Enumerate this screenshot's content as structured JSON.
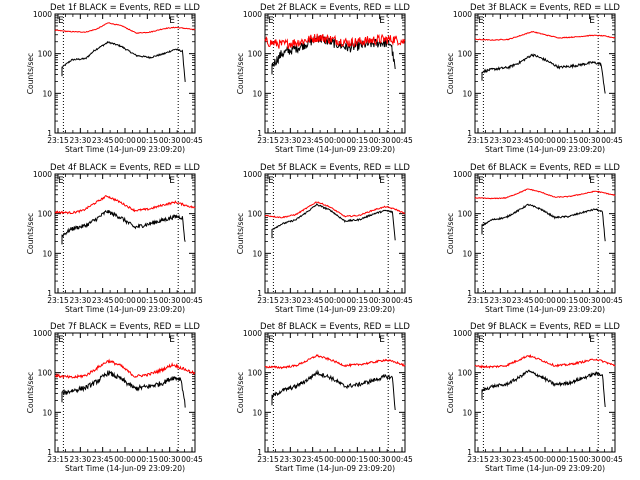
{
  "chart_data": [
    {
      "type": "line",
      "title": "Det 1f BLACK = Events, RED = LLD",
      "series": [
        {
          "name": "Events",
          "color": "#000000",
          "noise": 0.02,
          "drop": true,
          "values": [
            [
              0.0,
              0
            ],
            [
              0.05,
              45
            ],
            [
              0.12,
              70
            ],
            [
              0.22,
              75
            ],
            [
              0.28,
              120
            ],
            [
              0.38,
              195
            ],
            [
              0.47,
              155
            ],
            [
              0.58,
              90
            ],
            [
              0.68,
              80
            ],
            [
              0.78,
              100
            ],
            [
              0.86,
              130
            ],
            [
              0.91,
              115
            ],
            [
              0.93,
              20
            ]
          ]
        },
        {
          "name": "LLD",
          "color": "#ff0000",
          "noise": 0.01,
          "drop": false,
          "values": [
            [
              0.0,
              390
            ],
            [
              0.1,
              360
            ],
            [
              0.22,
              350
            ],
            [
              0.3,
              420
            ],
            [
              0.38,
              600
            ],
            [
              0.48,
              500
            ],
            [
              0.58,
              330
            ],
            [
              0.68,
              350
            ],
            [
              0.78,
              430
            ],
            [
              0.86,
              460
            ],
            [
              0.94,
              430
            ],
            [
              1.0,
              400
            ]
          ]
        }
      ]
    },
    {
      "type": "line",
      "title": "Det 2f BLACK = Events, RED = LLD",
      "series": [
        {
          "name": "Events",
          "color": "#000000",
          "noise": 0.12,
          "drop": true,
          "values": [
            [
              0.0,
              0
            ],
            [
              0.05,
              50
            ],
            [
              0.12,
              100
            ],
            [
              0.25,
              150
            ],
            [
              0.38,
              250
            ],
            [
              0.5,
              180
            ],
            [
              0.6,
              140
            ],
            [
              0.72,
              170
            ],
            [
              0.84,
              190
            ],
            [
              0.9,
              180
            ],
            [
              0.93,
              40
            ]
          ]
        },
        {
          "name": "LLD",
          "color": "#ff0000",
          "noise": 0.12,
          "drop": false,
          "values": [
            [
              0.0,
              200
            ],
            [
              0.12,
              170
            ],
            [
              0.25,
              200
            ],
            [
              0.38,
              260
            ],
            [
              0.5,
              220
            ],
            [
              0.6,
              190
            ],
            [
              0.72,
              210
            ],
            [
              0.84,
              230
            ],
            [
              0.92,
              230
            ],
            [
              1.0,
              200
            ]
          ]
        }
      ]
    },
    {
      "type": "line",
      "title": "Det 3f BLACK = Events, RED = LLD",
      "series": [
        {
          "name": "Events",
          "color": "#000000",
          "noise": 0.03,
          "drop": true,
          "values": [
            [
              0.0,
              0
            ],
            [
              0.05,
              35
            ],
            [
              0.12,
              40
            ],
            [
              0.24,
              45
            ],
            [
              0.32,
              60
            ],
            [
              0.41,
              95
            ],
            [
              0.5,
              70
            ],
            [
              0.6,
              45
            ],
            [
              0.72,
              50
            ],
            [
              0.84,
              60
            ],
            [
              0.9,
              55
            ],
            [
              0.93,
              10
            ]
          ]
        },
        {
          "name": "LLD",
          "color": "#ff0000",
          "noise": 0.01,
          "drop": false,
          "values": [
            [
              0.0,
              230
            ],
            [
              0.12,
              220
            ],
            [
              0.24,
              230
            ],
            [
              0.33,
              290
            ],
            [
              0.41,
              360
            ],
            [
              0.5,
              300
            ],
            [
              0.6,
              250
            ],
            [
              0.72,
              265
            ],
            [
              0.84,
              290
            ],
            [
              0.92,
              280
            ],
            [
              1.0,
              250
            ]
          ]
        }
      ]
    },
    {
      "type": "line",
      "title": "Det 4f BLACK = Events, RED = LLD",
      "series": [
        {
          "name": "Events",
          "color": "#000000",
          "noise": 0.05,
          "drop": true,
          "values": [
            [
              0.0,
              0
            ],
            [
              0.05,
              28
            ],
            [
              0.12,
              42
            ],
            [
              0.22,
              50
            ],
            [
              0.3,
              75
            ],
            [
              0.37,
              115
            ],
            [
              0.47,
              80
            ],
            [
              0.57,
              45
            ],
            [
              0.67,
              55
            ],
            [
              0.78,
              70
            ],
            [
              0.86,
              85
            ],
            [
              0.91,
              80
            ],
            [
              0.93,
              18
            ]
          ]
        },
        {
          "name": "LLD",
          "color": "#ff0000",
          "noise": 0.025,
          "drop": false,
          "values": [
            [
              0.0,
              110
            ],
            [
              0.12,
              105
            ],
            [
              0.2,
              120
            ],
            [
              0.28,
              180
            ],
            [
              0.37,
              280
            ],
            [
              0.46,
              200
            ],
            [
              0.57,
              120
            ],
            [
              0.67,
              130
            ],
            [
              0.77,
              165
            ],
            [
              0.86,
              195
            ],
            [
              0.94,
              160
            ],
            [
              1.0,
              140
            ]
          ]
        }
      ]
    },
    {
      "type": "line",
      "title": "Det 5f BLACK = Events, RED = LLD",
      "series": [
        {
          "name": "Events",
          "color": "#000000",
          "noise": 0.02,
          "drop": true,
          "values": [
            [
              0.0,
              0
            ],
            [
              0.05,
              40
            ],
            [
              0.12,
              55
            ],
            [
              0.22,
              70
            ],
            [
              0.3,
              110
            ],
            [
              0.37,
              170
            ],
            [
              0.47,
              120
            ],
            [
              0.57,
              65
            ],
            [
              0.67,
              70
            ],
            [
              0.78,
              100
            ],
            [
              0.86,
              120
            ],
            [
              0.91,
              110
            ],
            [
              0.93,
              22
            ]
          ]
        },
        {
          "name": "LLD",
          "color": "#ff0000",
          "noise": 0.015,
          "drop": false,
          "values": [
            [
              0.0,
              90
            ],
            [
              0.12,
              80
            ],
            [
              0.22,
              95
            ],
            [
              0.3,
              140
            ],
            [
              0.37,
              200
            ],
            [
              0.46,
              150
            ],
            [
              0.57,
              85
            ],
            [
              0.67,
              90
            ],
            [
              0.78,
              125
            ],
            [
              0.86,
              150
            ],
            [
              0.93,
              130
            ],
            [
              1.0,
              100
            ]
          ]
        }
      ]
    },
    {
      "type": "line",
      "title": "Det 6f BLACK = Events, RED = LLD",
      "series": [
        {
          "name": "Events",
          "color": "#000000",
          "noise": 0.02,
          "drop": true,
          "values": [
            [
              0.0,
              0
            ],
            [
              0.05,
              50
            ],
            [
              0.12,
              70
            ],
            [
              0.22,
              80
            ],
            [
              0.3,
              115
            ],
            [
              0.38,
              170
            ],
            [
              0.47,
              130
            ],
            [
              0.57,
              80
            ],
            [
              0.67,
              85
            ],
            [
              0.78,
              110
            ],
            [
              0.86,
              130
            ],
            [
              0.91,
              110
            ],
            [
              0.93,
              20
            ]
          ]
        },
        {
          "name": "LLD",
          "color": "#ff0000",
          "noise": 0.01,
          "drop": false,
          "values": [
            [
              0.0,
              250
            ],
            [
              0.12,
              240
            ],
            [
              0.22,
              250
            ],
            [
              0.3,
              320
            ],
            [
              0.38,
              420
            ],
            [
              0.47,
              350
            ],
            [
              0.57,
              260
            ],
            [
              0.67,
              270
            ],
            [
              0.78,
              320
            ],
            [
              0.86,
              370
            ],
            [
              0.93,
              330
            ],
            [
              1.0,
              290
            ]
          ]
        }
      ]
    },
    {
      "type": "line",
      "title": "Det 7f BLACK = Events, RED = LLD",
      "series": [
        {
          "name": "Events",
          "color": "#000000",
          "noise": 0.06,
          "drop": true,
          "values": [
            [
              0.0,
              0
            ],
            [
              0.05,
              30
            ],
            [
              0.12,
              35
            ],
            [
              0.22,
              42
            ],
            [
              0.3,
              60
            ],
            [
              0.38,
              100
            ],
            [
              0.47,
              70
            ],
            [
              0.57,
              40
            ],
            [
              0.67,
              45
            ],
            [
              0.77,
              55
            ],
            [
              0.84,
              75
            ],
            [
              0.9,
              70
            ],
            [
              0.93,
              15
            ]
          ]
        },
        {
          "name": "LLD",
          "color": "#ff0000",
          "noise": 0.035,
          "drop": false,
          "values": [
            [
              0.0,
              85
            ],
            [
              0.12,
              75
            ],
            [
              0.22,
              85
            ],
            [
              0.3,
              130
            ],
            [
              0.38,
              200
            ],
            [
              0.47,
              150
            ],
            [
              0.57,
              80
            ],
            [
              0.67,
              90
            ],
            [
              0.77,
              120
            ],
            [
              0.84,
              160
            ],
            [
              0.93,
              120
            ],
            [
              1.0,
              95
            ]
          ]
        }
      ]
    },
    {
      "type": "line",
      "title": "Det 8f BLACK = Events, RED = LLD",
      "series": [
        {
          "name": "Events",
          "color": "#000000",
          "noise": 0.05,
          "drop": true,
          "values": [
            [
              0.0,
              0
            ],
            [
              0.05,
              25
            ],
            [
              0.12,
              35
            ],
            [
              0.22,
              45
            ],
            [
              0.3,
              65
            ],
            [
              0.37,
              100
            ],
            [
              0.47,
              75
            ],
            [
              0.57,
              45
            ],
            [
              0.67,
              50
            ],
            [
              0.78,
              65
            ],
            [
              0.86,
              80
            ],
            [
              0.91,
              75
            ],
            [
              0.93,
              12
            ]
          ]
        },
        {
          "name": "LLD",
          "color": "#ff0000",
          "noise": 0.025,
          "drop": false,
          "values": [
            [
              0.0,
              140
            ],
            [
              0.12,
              135
            ],
            [
              0.22,
              150
            ],
            [
              0.3,
              200
            ],
            [
              0.37,
              270
            ],
            [
              0.47,
              210
            ],
            [
              0.57,
              150
            ],
            [
              0.67,
              160
            ],
            [
              0.78,
              185
            ],
            [
              0.86,
              210
            ],
            [
              0.94,
              180
            ],
            [
              1.0,
              150
            ]
          ]
        }
      ]
    },
    {
      "type": "line",
      "title": "Det 9f BLACK = Events, RED = LLD",
      "series": [
        {
          "name": "Events",
          "color": "#000000",
          "noise": 0.04,
          "drop": true,
          "values": [
            [
              0.0,
              0
            ],
            [
              0.05,
              35
            ],
            [
              0.12,
              45
            ],
            [
              0.22,
              50
            ],
            [
              0.3,
              70
            ],
            [
              0.38,
              110
            ],
            [
              0.47,
              80
            ],
            [
              0.57,
              50
            ],
            [
              0.67,
              55
            ],
            [
              0.78,
              75
            ],
            [
              0.86,
              95
            ],
            [
              0.91,
              90
            ],
            [
              0.93,
              14
            ]
          ]
        },
        {
          "name": "LLD",
          "color": "#ff0000",
          "noise": 0.025,
          "drop": false,
          "values": [
            [
              0.0,
              145
            ],
            [
              0.12,
              140
            ],
            [
              0.22,
              150
            ],
            [
              0.3,
              200
            ],
            [
              0.38,
              270
            ],
            [
              0.47,
              210
            ],
            [
              0.57,
              150
            ],
            [
              0.67,
              160
            ],
            [
              0.78,
              190
            ],
            [
              0.86,
              220
            ],
            [
              0.94,
              180
            ],
            [
              1.0,
              150
            ]
          ]
        }
      ]
    }
  ],
  "axes": {
    "xlabel": "Start Time (14-Jun-09 23:09:20)",
    "ylabel": "Counts/sec",
    "x_ticks": [
      "23:15",
      "23:30",
      "23:45",
      "00:00",
      "00:15",
      "00:30",
      "00:45"
    ],
    "y_ticks": [
      "1",
      "10",
      "100",
      "1000"
    ],
    "ylim": [
      1,
      1000
    ],
    "marker_label": "E",
    "vlines": [
      0.06,
      0.88
    ]
  }
}
